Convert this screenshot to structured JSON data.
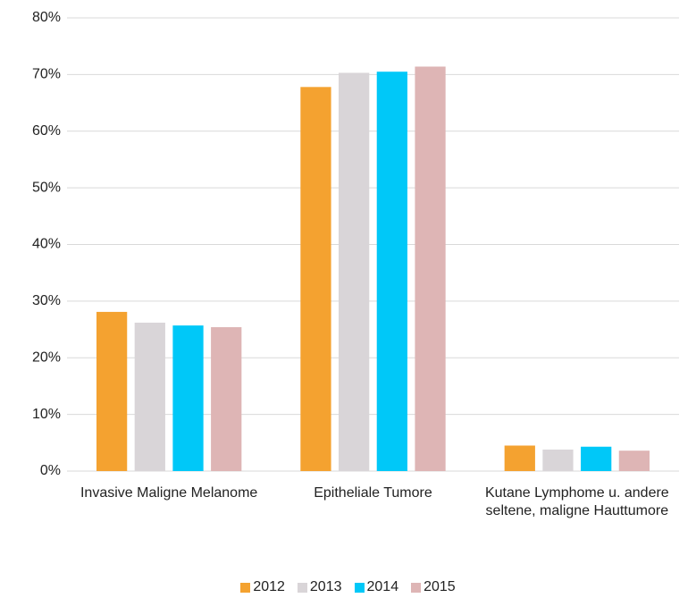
{
  "chart_data": {
    "type": "bar",
    "categories": [
      "Invasive Maligne Melanome",
      "Epitheliale Tumore",
      "Kutane Lymphome u. andere seltene, maligne Hauttumore"
    ],
    "series": [
      {
        "name": "2012",
        "color": "#f4a230",
        "values": [
          28.1,
          67.8,
          4.5
        ]
      },
      {
        "name": "2013",
        "color": "#d9d5d8",
        "values": [
          26.2,
          70.3,
          3.8
        ]
      },
      {
        "name": "2014",
        "color": "#00c8f8",
        "values": [
          25.7,
          70.5,
          4.3
        ]
      },
      {
        "name": "2015",
        "color": "#deb5b5",
        "values": [
          25.4,
          71.4,
          3.6
        ]
      }
    ],
    "ylim": [
      0,
      80
    ],
    "yticks": [
      {
        "value": 0,
        "label": "0%"
      },
      {
        "value": 10,
        "label": "10%"
      },
      {
        "value": 20,
        "label": "20%"
      },
      {
        "value": 30,
        "label": "30%"
      },
      {
        "value": 40,
        "label": "40%"
      },
      {
        "value": 50,
        "label": "50%"
      },
      {
        "value": 60,
        "label": "60%"
      },
      {
        "value": 70,
        "label": "70%"
      },
      {
        "value": 80,
        "label": "80%"
      }
    ],
    "grid": true,
    "legend": "bottom"
  }
}
